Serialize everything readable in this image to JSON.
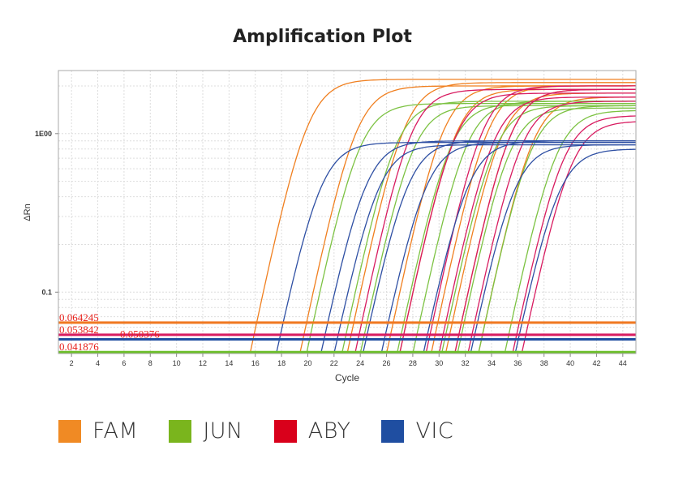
{
  "chart_data": {
    "type": "line",
    "title": "Amplification Plot",
    "xlabel": "Cycle",
    "ylabel": "ΔRn",
    "yscale": "log",
    "xlim": [
      1,
      45
    ],
    "ylim": [
      0.041,
      2.5
    ],
    "x_ticks": [
      2,
      4,
      6,
      8,
      10,
      12,
      14,
      16,
      18,
      20,
      22,
      24,
      26,
      28,
      30,
      32,
      34,
      36,
      38,
      40,
      42,
      44
    ],
    "y_ticks": [
      {
        "value": 1,
        "label": "1E00"
      },
      {
        "value": 0.1,
        "label": "0.1"
      }
    ],
    "grid": true,
    "legend_position": "bottom",
    "thresholds": [
      {
        "label": "0.064245",
        "value": 0.064245,
        "color": "#f07820"
      },
      {
        "label": "0.053842",
        "value": 0.053842,
        "color": "#d81b60"
      },
      {
        "label": "0.050376",
        "value": 0.050376,
        "color": "#1f4ea1"
      },
      {
        "label": "0.041876",
        "value": 0.041876,
        "color": "#6cbf2a"
      }
    ],
    "series": [
      {
        "name": "FAM",
        "color": "#f07f1f",
        "legend_color": "#f08a24",
        "curves": [
          {
            "ct": 15.6,
            "plateau": 2.2
          },
          {
            "ct": 19.4,
            "plateau": 2.0
          },
          {
            "ct": 23.0,
            "plateau": 2.1
          },
          {
            "ct": 26.0,
            "plateau": 2.0
          },
          {
            "ct": 27.0,
            "plateau": 1.9
          },
          {
            "ct": 29.4,
            "plateau": 2.0
          },
          {
            "ct": 30.5,
            "plateau": 1.8
          },
          {
            "ct": 31.2,
            "plateau": 1.9
          },
          {
            "ct": 33.0,
            "plateau": 1.7
          }
        ]
      },
      {
        "name": "JUN",
        "color": "#7cc242",
        "legend_color": "#7ab51d",
        "curves": [
          {
            "ct": 19.9,
            "plateau": 1.55
          },
          {
            "ct": 22.6,
            "plateau": 1.6
          },
          {
            "ct": 24.0,
            "plateau": 1.5
          },
          {
            "ct": 26.8,
            "plateau": 1.55
          },
          {
            "ct": 28.0,
            "plateau": 1.6
          },
          {
            "ct": 30.2,
            "plateau": 1.5
          },
          {
            "ct": 31.4,
            "plateau": 1.45
          },
          {
            "ct": 33.0,
            "plateau": 1.5
          },
          {
            "ct": 35.0,
            "plateau": 1.4
          }
        ]
      },
      {
        "name": "ABY",
        "color": "#d81b60",
        "legend_color": "#d9001b",
        "curves": [
          {
            "ct": 23.6,
            "plateau": 1.9
          },
          {
            "ct": 27.0,
            "plateau": 1.8
          },
          {
            "ct": 29.0,
            "plateau": 2.0
          },
          {
            "ct": 30.0,
            "plateau": 1.7
          },
          {
            "ct": 31.2,
            "plateau": 1.9
          },
          {
            "ct": 32.2,
            "plateau": 1.6
          },
          {
            "ct": 35.6,
            "plateau": 1.3
          },
          {
            "ct": 36.3,
            "plateau": 1.2
          }
        ]
      },
      {
        "name": "VIC",
        "color": "#2e4fa3",
        "legend_color": "#1f4ea1",
        "curves": [
          {
            "ct": 17.6,
            "plateau": 0.88
          },
          {
            "ct": 21.0,
            "plateau": 0.9
          },
          {
            "ct": 22.0,
            "plateau": 0.85
          },
          {
            "ct": 24.2,
            "plateau": 0.9
          },
          {
            "ct": 25.6,
            "plateau": 0.88
          },
          {
            "ct": 28.8,
            "plateau": 0.9
          },
          {
            "ct": 32.4,
            "plateau": 0.85
          },
          {
            "ct": 35.8,
            "plateau": 0.8
          }
        ]
      }
    ]
  }
}
